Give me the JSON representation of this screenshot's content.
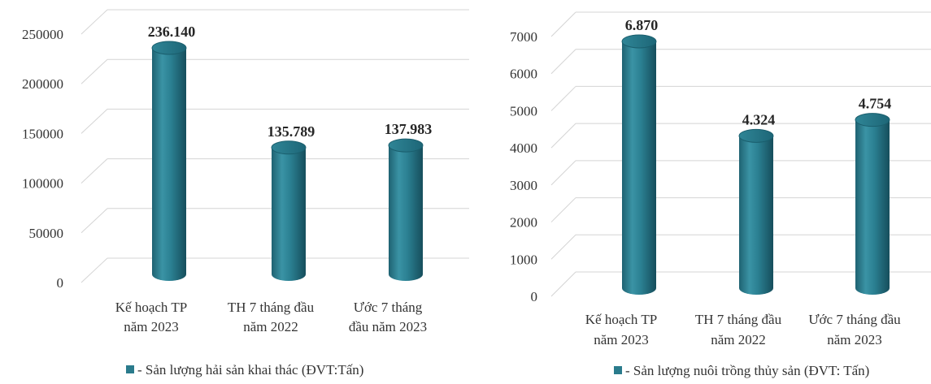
{
  "chart_data": [
    {
      "type": "bar",
      "categories": [
        [
          "Kế hoạch TP",
          "năm 2023"
        ],
        [
          "TH 7 tháng đầu",
          "năm 2022"
        ],
        [
          "Ước 7 tháng",
          "đầu năm 2023"
        ]
      ],
      "values": [
        236140,
        135789,
        137983
      ],
      "data_labels": [
        "236.140",
        "135.789",
        "137.983"
      ],
      "yticks": [
        0,
        50000,
        100000,
        150000,
        200000,
        250000
      ],
      "ylim": [
        0,
        250000
      ],
      "legend": "- Sản lượng hải sản khai thác (ĐVT:Tấn)",
      "legend_position": "bottom",
      "grid": true,
      "bar_style": "3d-cylinder",
      "bar_color": "#2a7b8c"
    },
    {
      "type": "bar",
      "categories": [
        [
          "Kế hoạch TP",
          "năm 2023"
        ],
        [
          "TH 7 tháng đầu",
          "năm 2022"
        ],
        [
          "Ước 7 tháng đầu",
          "năm 2023"
        ]
      ],
      "values": [
        6870,
        4324,
        4754
      ],
      "data_labels": [
        "6.870",
        "4.324",
        "4.754"
      ],
      "yticks": [
        0,
        1000,
        2000,
        3000,
        4000,
        5000,
        6000,
        7000
      ],
      "ylim": [
        0,
        7000
      ],
      "legend": "- Sản lượng nuôi trồng thủy sản (ĐVT: Tấn)",
      "legend_position": "bottom",
      "grid": true,
      "bar_style": "3d-cylinder",
      "bar_color": "#2a7b8c"
    }
  ]
}
